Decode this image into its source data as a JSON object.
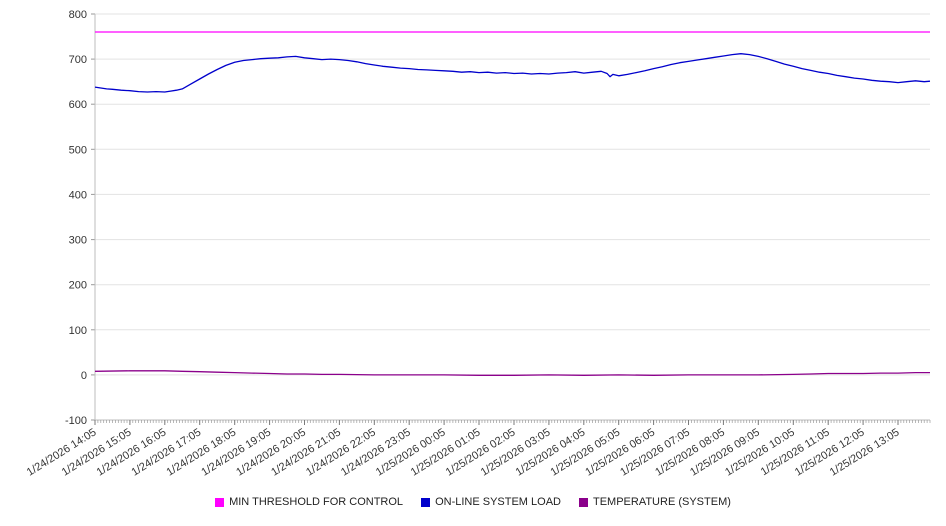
{
  "chart_data": {
    "type": "line",
    "title": "",
    "xlabel": "",
    "ylabel": "",
    "grid": true,
    "legend_position": "bottom",
    "ylim": [
      -100,
      800
    ],
    "y_ticks": [
      -100,
      0,
      100,
      200,
      300,
      400,
      500,
      600,
      700,
      800
    ],
    "xlim": [
      0,
      1435
    ],
    "x_ticks": [
      0,
      60,
      120,
      180,
      240,
      300,
      360,
      420,
      480,
      540,
      600,
      660,
      720,
      780,
      840,
      900,
      960,
      1020,
      1080,
      1140,
      1200,
      1260,
      1320,
      1380
    ],
    "x_tick_labels": [
      "1/24/2026 14:05",
      "1/24/2026 15:05",
      "1/24/2026 16:05",
      "1/24/2026 17:05",
      "1/24/2026 18:05",
      "1/24/2026 19:05",
      "1/24/2026 20:05",
      "1/24/2026 21:05",
      "1/24/2026 22:05",
      "1/24/2026 23:05",
      "1/25/2026 00:05",
      "1/25/2026 01:05",
      "1/25/2026 02:05",
      "1/25/2026 03:05",
      "1/25/2026 04:05",
      "1/25/2026 05:05",
      "1/25/2026 06:05",
      "1/25/2026 07:05",
      "1/25/2026 08:05",
      "1/25/2026 09:05",
      "1/25/2026 10:05",
      "1/25/2026 11:05",
      "1/25/2026 12:05",
      "1/25/2026 13:05"
    ],
    "series": [
      {
        "name": "MIN THRESHOLD FOR CONTROL",
        "color": "#ff00ff",
        "x": [
          0,
          1435
        ],
        "values": [
          760,
          760
        ]
      },
      {
        "name": "ON-LINE SYSTEM LOAD",
        "color": "#0000cc",
        "x": [
          0,
          10,
          20,
          30,
          45,
          60,
          75,
          90,
          105,
          120,
          130,
          140,
          150,
          165,
          180,
          195,
          210,
          225,
          240,
          255,
          270,
          285,
          300,
          315,
          330,
          345,
          360,
          375,
          390,
          405,
          420,
          435,
          450,
          465,
          480,
          495,
          510,
          525,
          540,
          555,
          570,
          585,
          600,
          615,
          630,
          645,
          660,
          675,
          690,
          705,
          720,
          735,
          750,
          765,
          780,
          795,
          810,
          825,
          840,
          855,
          870,
          880,
          885,
          890,
          900,
          915,
          930,
          945,
          960,
          975,
          990,
          1005,
          1020,
          1035,
          1050,
          1065,
          1080,
          1095,
          1110,
          1125,
          1140,
          1155,
          1170,
          1185,
          1200,
          1215,
          1230,
          1245,
          1260,
          1275,
          1290,
          1305,
          1320,
          1335,
          1350,
          1365,
          1380,
          1395,
          1410,
          1425,
          1435
        ],
        "values": [
          638,
          636,
          634,
          633,
          631,
          630,
          628,
          627,
          628,
          627,
          629,
          631,
          634,
          645,
          656,
          667,
          677,
          686,
          693,
          697,
          699,
          701,
          702,
          703,
          705,
          706,
          703,
          701,
          699,
          700,
          699,
          697,
          694,
          690,
          687,
          684,
          682,
          680,
          679,
          677,
          676,
          675,
          674,
          673,
          671,
          672,
          670,
          671,
          669,
          670,
          668,
          669,
          667,
          668,
          667,
          669,
          670,
          672,
          669,
          671,
          673,
          668,
          661,
          666,
          663,
          666,
          670,
          674,
          679,
          683,
          688,
          692,
          695,
          698,
          701,
          704,
          707,
          710,
          712,
          710,
          706,
          701,
          695,
          689,
          684,
          679,
          675,
          671,
          668,
          664,
          661,
          658,
          656,
          653,
          651,
          650,
          648,
          650,
          652,
          650,
          651
        ]
      },
      {
        "name": "TEMPERATURE (SYSTEM)",
        "color": "#8b008b",
        "x": [
          0,
          60,
          120,
          150,
          180,
          210,
          240,
          270,
          300,
          330,
          360,
          390,
          420,
          480,
          540,
          600,
          660,
          720,
          780,
          840,
          900,
          960,
          1020,
          1080,
          1140,
          1200,
          1230,
          1260,
          1290,
          1320,
          1350,
          1380,
          1410,
          1435
        ],
        "values": [
          8,
          9,
          9,
          8,
          7,
          6,
          5,
          4,
          3,
          2,
          2,
          1,
          1,
          0,
          0,
          0,
          -1,
          -1,
          0,
          -1,
          0,
          -1,
          0,
          0,
          0,
          1,
          2,
          3,
          3,
          3,
          4,
          4,
          5,
          5
        ]
      }
    ]
  },
  "legend": {
    "items": [
      {
        "label": "MIN THRESHOLD FOR CONTROL",
        "color": "#ff00ff"
      },
      {
        "label": "ON-LINE SYSTEM LOAD",
        "color": "#0000cc"
      },
      {
        "label": "TEMPERATURE (SYSTEM)",
        "color": "#8b008b"
      }
    ]
  }
}
